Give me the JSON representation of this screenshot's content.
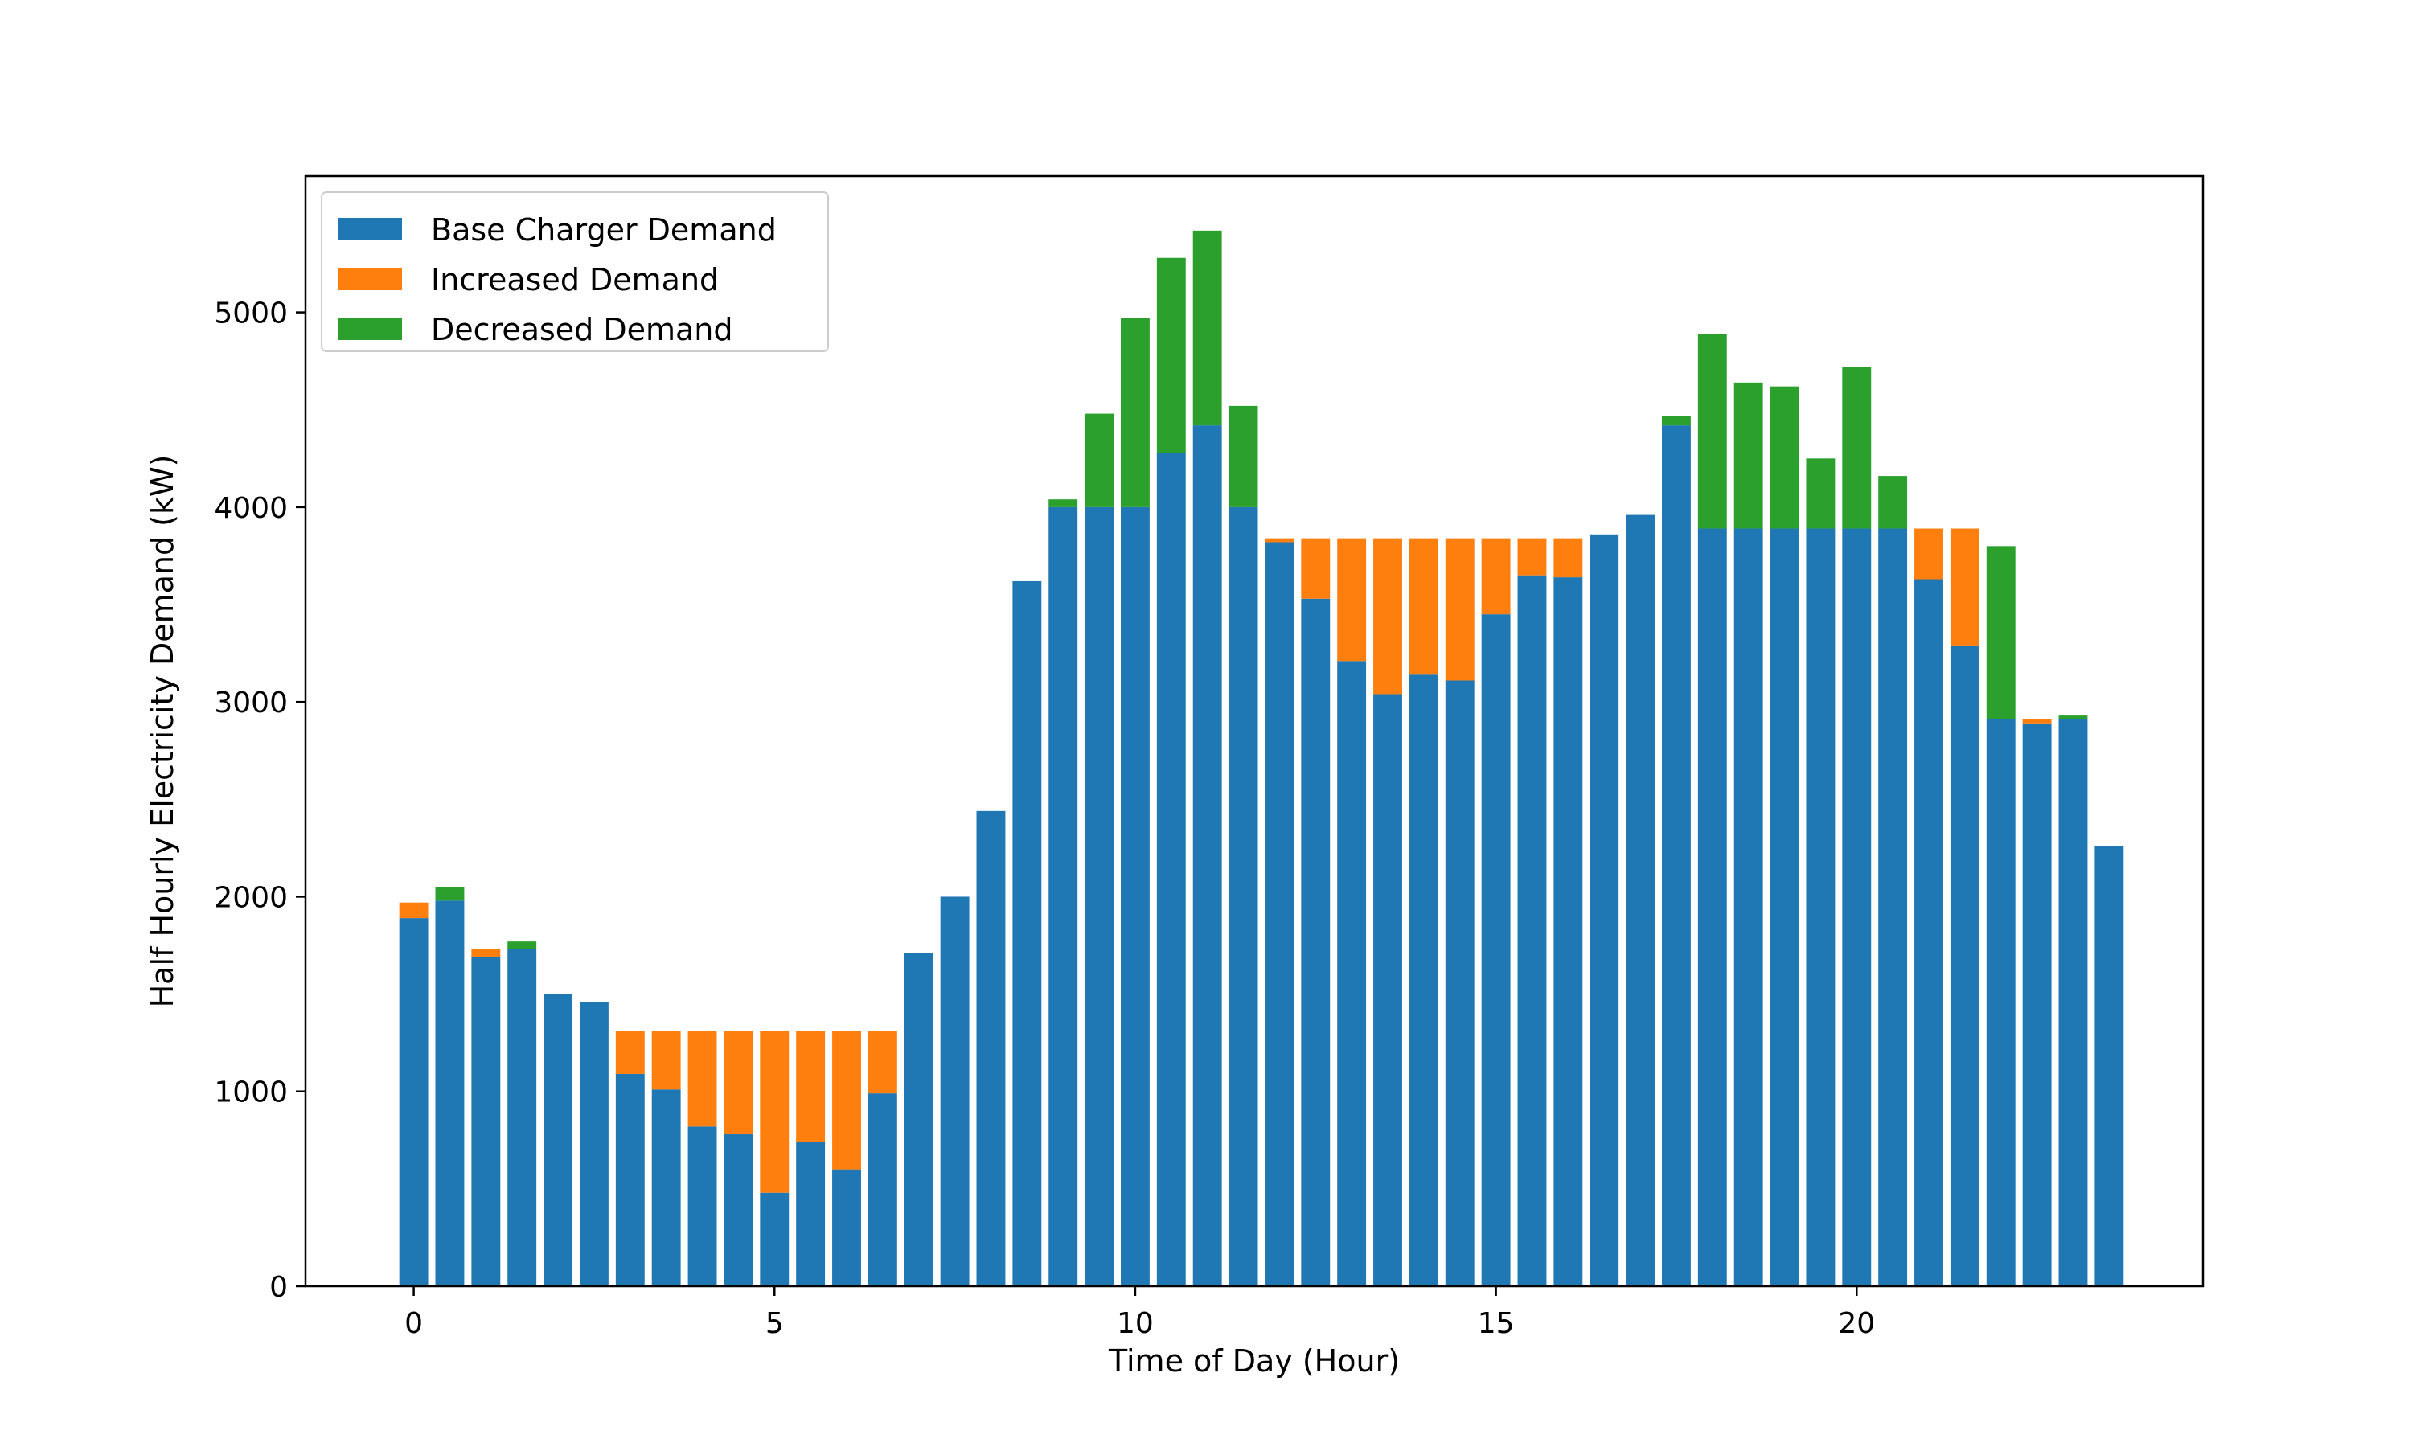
{
  "chart_data": {
    "type": "bar",
    "stacked": true,
    "title": "",
    "xlabel": "Time of Day (Hour)",
    "ylabel": "Half Hourly Electricity Demand (kW)",
    "xlim": [
      -1.5,
      24.8
    ],
    "ylim": [
      0,
      5700
    ],
    "xticks": [
      0,
      5,
      10,
      15,
      20
    ],
    "yticks": [
      0,
      1000,
      2000,
      3000,
      4000,
      5000
    ],
    "grid": false,
    "legend_position": "top-left",
    "x": [
      0,
      0.5,
      1,
      1.5,
      2,
      2.5,
      3,
      3.5,
      4,
      4.5,
      5,
      5.5,
      6,
      6.5,
      7,
      7.5,
      8,
      8.5,
      9,
      9.5,
      10,
      10.5,
      11,
      11.5,
      12,
      12.5,
      13,
      13.5,
      14,
      14.5,
      15,
      15.5,
      16,
      16.5,
      17,
      17.5,
      18,
      18.5,
      19,
      19.5,
      20,
      20.5,
      21,
      21.5,
      22,
      22.5,
      23,
      23.5
    ],
    "series": [
      {
        "name": "Base Charger Demand",
        "color": "#1f77b4",
        "values": [
          1890,
          1980,
          1690,
          1730,
          1500,
          1460,
          1090,
          1010,
          820,
          780,
          480,
          740,
          600,
          990,
          1710,
          2000,
          2440,
          3620,
          4000,
          4000,
          4000,
          4280,
          4420,
          4000,
          3820,
          3530,
          3210,
          3040,
          3140,
          3110,
          3450,
          3650,
          3640,
          3860,
          3960,
          4420,
          3890,
          3890,
          3890,
          3890,
          3890,
          3890,
          3630,
          3290,
          2910,
          2890,
          2910,
          2260
        ]
      },
      {
        "name": "Increased Demand",
        "color": "#ff7f0e",
        "values": [
          80,
          0,
          40,
          0,
          0,
          0,
          220,
          300,
          490,
          530,
          830,
          570,
          710,
          320,
          0,
          0,
          0,
          0,
          0,
          0,
          0,
          0,
          0,
          0,
          20,
          310,
          630,
          800,
          700,
          730,
          390,
          190,
          200,
          0,
          0,
          0,
          0,
          0,
          0,
          0,
          0,
          0,
          260,
          600,
          0,
          20,
          0,
          0
        ]
      },
      {
        "name": "Decreased Demand",
        "color": "#2ca02c",
        "values": [
          0,
          70,
          0,
          40,
          0,
          0,
          0,
          0,
          0,
          0,
          0,
          0,
          0,
          0,
          0,
          0,
          0,
          0,
          40,
          480,
          970,
          1000,
          1000,
          520,
          0,
          0,
          0,
          0,
          0,
          0,
          0,
          0,
          0,
          0,
          0,
          50,
          1000,
          750,
          730,
          360,
          830,
          270,
          0,
          0,
          890,
          0,
          20,
          0
        ]
      }
    ]
  }
}
